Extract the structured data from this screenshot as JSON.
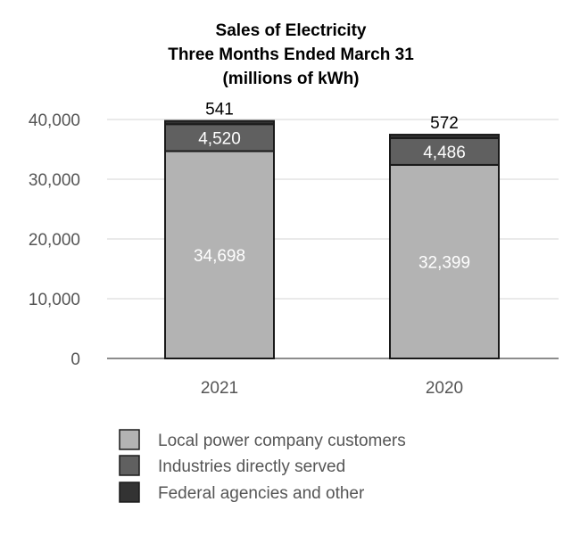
{
  "chart_data": {
    "type": "bar",
    "stacked": true,
    "title": [
      "Sales of Electricity",
      "Three Months Ended March 31",
      "(millions of kWh)"
    ],
    "categories": [
      "2021",
      "2020"
    ],
    "series": [
      {
        "name": "Local power company customers",
        "values": [
          34698,
          32399
        ],
        "color": "#b3b3b3",
        "label_color": "#ffffff",
        "label_position": "inside"
      },
      {
        "name": "Industries directly served",
        "values": [
          4520,
          4486
        ],
        "color": "#606060",
        "label_color": "#ffffff",
        "label_position": "inside"
      },
      {
        "name": "Federal agencies and other",
        "values": [
          541,
          572
        ],
        "color": "#333333",
        "label_color": "#000000",
        "label_position": "above"
      }
    ],
    "data_labels": [
      [
        "34,698",
        "32,399"
      ],
      [
        "4,520",
        "4,486"
      ],
      [
        "541",
        "572"
      ]
    ],
    "ylim": [
      0,
      40000
    ],
    "yticks": [
      0,
      10000,
      20000,
      30000,
      40000
    ],
    "ytick_labels": [
      "0",
      "10,000",
      "20,000",
      "30,000",
      "40,000"
    ],
    "grid": true,
    "legend_position": "bottom"
  }
}
